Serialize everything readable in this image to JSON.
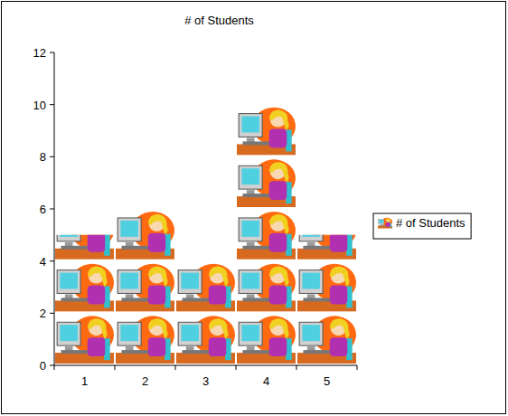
{
  "chart_data": {
    "type": "bar",
    "title": "# of Students",
    "categories": [
      "1",
      "2",
      "3",
      "4",
      "5"
    ],
    "series": [
      {
        "name": "# of Students",
        "color": "#ff6a10",
        "values": [
          5,
          6,
          4,
          10,
          5
        ]
      }
    ],
    "ylim": [
      0,
      12
    ],
    "yticks": [
      0,
      2,
      4,
      6,
      8,
      10,
      12
    ],
    "legend": "right"
  }
}
